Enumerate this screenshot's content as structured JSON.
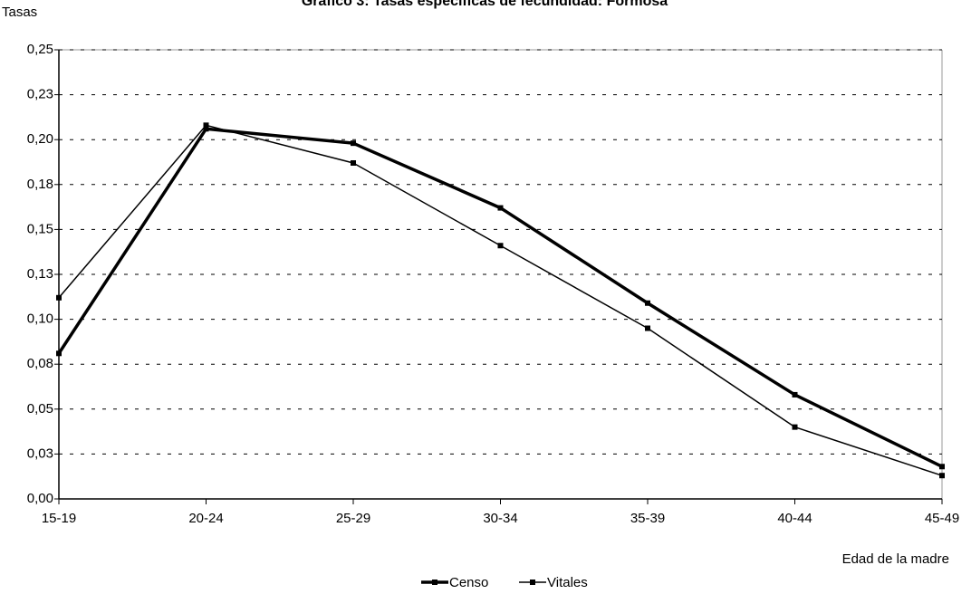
{
  "chart_data": {
    "type": "line",
    "title": "Gráfico 3: Tasas específicas de fecundidad: Formosa",
    "y_label": "Tasas",
    "x_label": "Edad de la madre",
    "categories": [
      "15-19",
      "20-24",
      "25-29",
      "30-34",
      "35-39",
      "40-44",
      "45-49"
    ],
    "series": [
      {
        "name": "Censo",
        "color": "#000000",
        "width": 3.5,
        "values": [
          0.081,
          0.206,
          0.198,
          0.162,
          0.109,
          0.058,
          0.018
        ]
      },
      {
        "name": "Vitales",
        "color": "#000000",
        "width": 1.5,
        "values": [
          0.112,
          0.208,
          0.187,
          0.141,
          0.095,
          0.04,
          0.013
        ]
      }
    ],
    "ylim": [
      0,
      0.25
    ],
    "yticks": [
      {
        "value": 0,
        "label": "0,00"
      },
      {
        "value": 0.025,
        "label": "0,03"
      },
      {
        "value": 0.05,
        "label": "0,05"
      },
      {
        "value": 0.075,
        "label": "0,08"
      },
      {
        "value": 0.1,
        "label": "0,10"
      },
      {
        "value": 0.125,
        "label": "0,13"
      },
      {
        "value": 0.15,
        "label": "0,15"
      },
      {
        "value": 0.175,
        "label": "0,18"
      },
      {
        "value": 0.2,
        "label": "0,20"
      },
      {
        "value": 0.225,
        "label": "0,23"
      },
      {
        "value": 0.25,
        "label": "0,25"
      }
    ],
    "grid": true,
    "legend": "bottom"
  }
}
